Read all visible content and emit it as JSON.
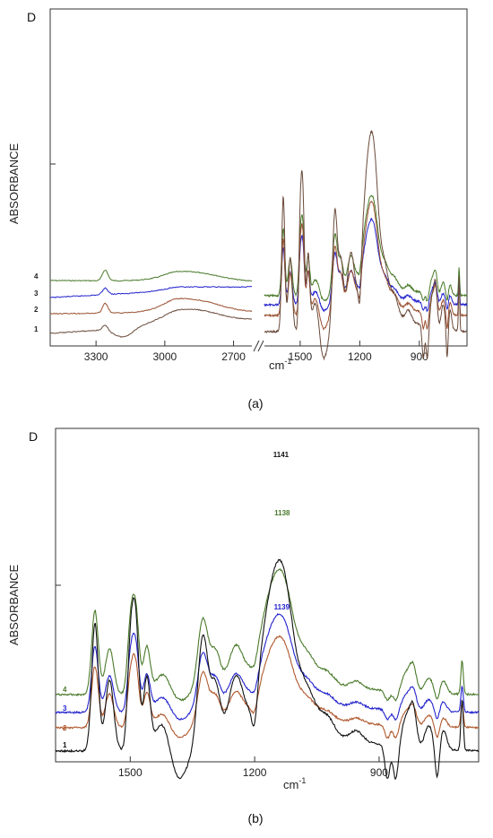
{
  "chart_data": [
    {
      "type": "line",
      "panel_label": "(a)",
      "corner_label": "D",
      "ylabel": "ABSORBANCE",
      "xlabel_base": "cm",
      "xlabel_exp": "-1",
      "x_ticks_left": [
        "3300",
        "3000",
        "2700"
      ],
      "x_ticks_right": [
        "1500",
        "1200",
        "900"
      ],
      "xlim_left": [
        3500,
        2620
      ],
      "xlim_right": [
        1680,
        660
      ],
      "axis_break": true,
      "series": [
        {
          "label": "4",
          "color": "#4a7a2a"
        },
        {
          "label": "3",
          "color": "#2222cc"
        },
        {
          "label": "2",
          "color": "#9a5030"
        },
        {
          "label": "1",
          "color": "#6a4a3a"
        }
      ]
    },
    {
      "type": "line",
      "panel_label": "(b)",
      "corner_label": "D",
      "ylabel": "ABSORBANCE",
      "xlabel_base": "cm",
      "xlabel_exp": "-1",
      "x_ticks": [
        "1500",
        "1200",
        "900"
      ],
      "xlim": [
        1680,
        660
      ],
      "series": [
        {
          "label": "4",
          "color": "#4a7a2a"
        },
        {
          "label": "3",
          "color": "#2222cc"
        },
        {
          "label": "2",
          "color": "#b05a30"
        },
        {
          "label": "1",
          "color": "#111111"
        }
      ],
      "annotations": [
        {
          "text": "1141",
          "x": 1141,
          "color": "#111111"
        },
        {
          "text": "1138",
          "x": 1138,
          "color": "#4a7a2a"
        },
        {
          "text": "1139",
          "x": 1139,
          "color": "#2222cc"
        }
      ]
    }
  ]
}
